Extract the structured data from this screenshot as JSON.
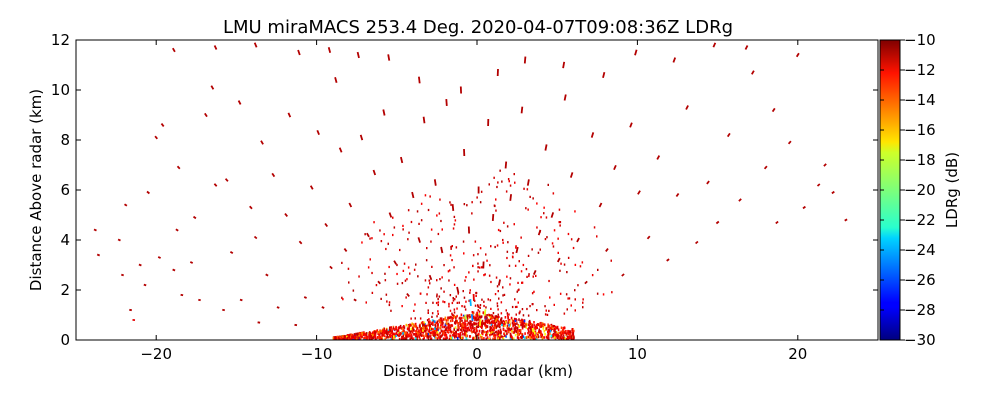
{
  "chart_data": {
    "type": "scatter",
    "title": "LMU miraMACS 253.4 Deg. 2020-04-07T09:08:36Z  LDRg",
    "xlabel": "Distance from radar (km)",
    "ylabel": "Distance Above radar  (km)",
    "xlim": [
      -25,
      25
    ],
    "ylim": [
      0,
      12
    ],
    "xticks": [
      -20,
      -10,
      0,
      10,
      20
    ],
    "xtick_labels": [
      "−20",
      "−10",
      "0",
      "10",
      "20"
    ],
    "yticks": [
      0,
      2,
      4,
      6,
      8,
      10,
      12
    ],
    "ytick_labels": [
      "0",
      "2",
      "4",
      "6",
      "8",
      "10",
      "12"
    ],
    "grid": false,
    "colorbar": {
      "label": "LDRg (dB)",
      "range": [
        -30,
        -10
      ],
      "ticks": [
        -10,
        -12,
        -14,
        -16,
        -18,
        -20,
        -22,
        -24,
        -26,
        -28,
        -30
      ],
      "tick_labels": [
        "−10",
        "−12",
        "−14",
        "−16",
        "−18",
        "−20",
        "−22",
        "−24",
        "−26",
        "−28",
        "−30"
      ],
      "colormap": "jet"
    },
    "series": [
      {
        "points": [
          [
            -23.8,
            4.4,
            -11
          ],
          [
            -23.6,
            3.4,
            -11
          ],
          [
            -22.3,
            4.0,
            -11
          ],
          [
            -22.1,
            2.6,
            -11
          ],
          [
            -21.9,
            5.4,
            -11
          ],
          [
            -21.6,
            1.2,
            -11
          ],
          [
            -21.4,
            0.8,
            -12
          ],
          [
            -21.0,
            3.0,
            -11
          ],
          [
            -20.7,
            2.2,
            -11
          ],
          [
            -20.5,
            5.9,
            -11
          ],
          [
            -20.0,
            8.1,
            -11
          ],
          [
            -19.8,
            3.3,
            -11
          ],
          [
            -19.6,
            8.6,
            -11
          ],
          [
            -18.9,
            2.8,
            -11
          ],
          [
            -18.7,
            4.4,
            -11
          ],
          [
            -18.6,
            6.9,
            -11
          ],
          [
            -18.4,
            1.8,
            -11
          ],
          [
            -17.8,
            3.1,
            -11
          ],
          [
            -17.6,
            4.9,
            -11
          ],
          [
            -17.3,
            1.6,
            -11
          ],
          [
            -16.9,
            9.0,
            -11
          ],
          [
            -16.5,
            10.1,
            -11
          ],
          [
            -16.3,
            6.2,
            -11
          ],
          [
            -15.8,
            1.2,
            -11
          ],
          [
            -15.6,
            6.4,
            -11
          ],
          [
            -15.3,
            3.5,
            -11
          ],
          [
            -14.8,
            9.5,
            -11
          ],
          [
            -14.7,
            1.6,
            -11
          ],
          [
            -14.1,
            5.3,
            -11
          ],
          [
            -13.8,
            4.1,
            -11
          ],
          [
            -13.6,
            0.7,
            -11
          ],
          [
            -13.4,
            7.9,
            -11
          ],
          [
            -13.1,
            2.6,
            -11
          ],
          [
            -12.7,
            6.6,
            -11
          ],
          [
            -12.4,
            1.3,
            -11
          ],
          [
            -11.9,
            5.0,
            -11
          ],
          [
            -11.7,
            9.0,
            -11
          ],
          [
            -11.3,
            0.6,
            -11
          ],
          [
            -11.0,
            3.9,
            -11
          ],
          [
            -10.7,
            1.7,
            -11
          ],
          [
            -10.3,
            6.1,
            -11
          ],
          [
            -9.9,
            8.3,
            -11
          ],
          [
            -9.6,
            1.3,
            -11
          ],
          [
            -9.4,
            4.6,
            -11
          ],
          [
            -9.1,
            2.9,
            -11
          ],
          [
            -8.8,
            10.4,
            -11
          ],
          [
            -8.5,
            7.6,
            -11
          ],
          [
            -8.2,
            3.6,
            -11
          ],
          [
            -7.9,
            5.4,
            -11
          ],
          [
            -7.6,
            1.6,
            -11
          ],
          [
            -7.2,
            8.1,
            -11
          ],
          [
            -6.8,
            4.2,
            -11
          ],
          [
            -6.4,
            6.7,
            -11
          ],
          [
            -6.1,
            2.3,
            -11
          ],
          [
            -5.8,
            9.1,
            -11
          ],
          [
            -5.4,
            5.0,
            -11
          ],
          [
            -5.1,
            3.1,
            -11
          ],
          [
            -4.7,
            7.2,
            -11
          ],
          [
            -4.3,
            1.8,
            -11
          ],
          [
            -4.0,
            5.8,
            -11
          ],
          [
            -3.6,
            4.0,
            -11
          ],
          [
            -3.3,
            8.8,
            -11
          ],
          [
            -2.9,
            2.5,
            -11
          ],
          [
            -2.6,
            6.3,
            -11
          ],
          [
            -2.2,
            3.6,
            -11
          ],
          [
            -1.9,
            9.5,
            -11
          ],
          [
            -1.5,
            5.3,
            -11
          ],
          [
            -1.2,
            2.0,
            -11
          ],
          [
            -0.8,
            7.5,
            -11
          ],
          [
            -0.5,
            4.4,
            -11
          ],
          [
            -0.2,
            1.7,
            -12
          ],
          [
            0.1,
            6.0,
            -11
          ],
          [
            0.4,
            3.0,
            -11
          ],
          [
            0.7,
            8.7,
            -11
          ],
          [
            1.0,
            4.9,
            -11
          ],
          [
            1.4,
            2.3,
            -11
          ],
          [
            1.8,
            7.0,
            -11
          ],
          [
            2.1,
            5.7,
            -11
          ],
          [
            2.5,
            3.6,
            -11
          ],
          [
            2.8,
            9.2,
            -11
          ],
          [
            3.2,
            6.3,
            -11
          ],
          [
            3.6,
            2.7,
            -11
          ],
          [
            3.9,
            4.3,
            -11
          ],
          [
            4.3,
            7.7,
            -11
          ],
          [
            4.7,
            5.0,
            -11
          ],
          [
            5.1,
            3.2,
            -11
          ],
          [
            5.5,
            9.7,
            -11
          ],
          [
            5.9,
            6.6,
            -11
          ],
          [
            6.3,
            4.0,
            -11
          ],
          [
            6.8,
            2.3,
            -11
          ],
          [
            7.2,
            8.2,
            -11
          ],
          [
            7.7,
            5.4,
            -11
          ],
          [
            8.1,
            3.6,
            -11
          ],
          [
            8.6,
            6.9,
            -11
          ],
          [
            9.1,
            2.6,
            -11
          ],
          [
            9.6,
            8.6,
            -11
          ],
          [
            10.1,
            5.9,
            -11
          ],
          [
            10.7,
            4.1,
            -11
          ],
          [
            11.3,
            7.3,
            -11
          ],
          [
            11.9,
            3.2,
            -11
          ],
          [
            12.5,
            5.8,
            -11
          ],
          [
            13.1,
            9.3,
            -11
          ],
          [
            13.7,
            3.9,
            -11
          ],
          [
            14.4,
            6.3,
            -11
          ],
          [
            15.0,
            4.7,
            -11
          ],
          [
            15.7,
            8.2,
            -11
          ],
          [
            16.4,
            5.6,
            -11
          ],
          [
            17.2,
            10.7,
            -11
          ],
          [
            18.0,
            6.9,
            -11
          ],
          [
            18.7,
            4.7,
            -11
          ],
          [
            19.5,
            7.9,
            -11
          ],
          [
            20.4,
            5.3,
            -11
          ],
          [
            21.3,
            6.2,
            -11
          ],
          [
            22.2,
            5.9,
            -11
          ],
          [
            23.0,
            4.8,
            -11
          ],
          [
            -7.4,
            11.4,
            -11
          ],
          [
            -5.5,
            11.3,
            -11
          ],
          [
            -3.6,
            10.4,
            -11
          ],
          [
            -1.0,
            10.0,
            -11
          ],
          [
            1.3,
            10.7,
            -11
          ],
          [
            3.0,
            11.2,
            -11
          ],
          [
            5.4,
            11.0,
            -11
          ],
          [
            7.9,
            10.6,
            -11
          ],
          [
            9.9,
            11.5,
            -11
          ],
          [
            12.3,
            11.2,
            -11
          ],
          [
            14.8,
            11.8,
            -11
          ],
          [
            16.8,
            11.7,
            -11
          ],
          [
            18.5,
            9.2,
            -11
          ],
          [
            20.0,
            11.4,
            -11
          ],
          [
            21.7,
            7.0,
            -11
          ],
          [
            -18.9,
            11.6,
            -11
          ],
          [
            -16.3,
            11.7,
            -11
          ],
          [
            -13.8,
            11.8,
            -11
          ],
          [
            -11.1,
            11.5,
            -11
          ],
          [
            -9.2,
            11.6,
            -11
          ],
          [
            -0.3,
            0.9,
            -25
          ],
          [
            -0.4,
            1.5,
            -24
          ],
          [
            0.2,
            0.7,
            -17
          ],
          [
            -0.9,
            0.6,
            -14
          ],
          [
            1.2,
            0.8,
            -15
          ],
          [
            -1.8,
            0.3,
            -13
          ],
          [
            0.9,
            0.3,
            -16
          ],
          [
            -2.6,
            0.2,
            -12
          ],
          [
            0.5,
            1.1,
            -18
          ],
          [
            -0.7,
            0.9,
            -19
          ]
        ]
      }
    ],
    "near_field_band": {
      "note": "dense low-level echo region near the radar",
      "x_range": [
        -9,
        6
      ],
      "top_height_at_zero": 1.1
    }
  }
}
